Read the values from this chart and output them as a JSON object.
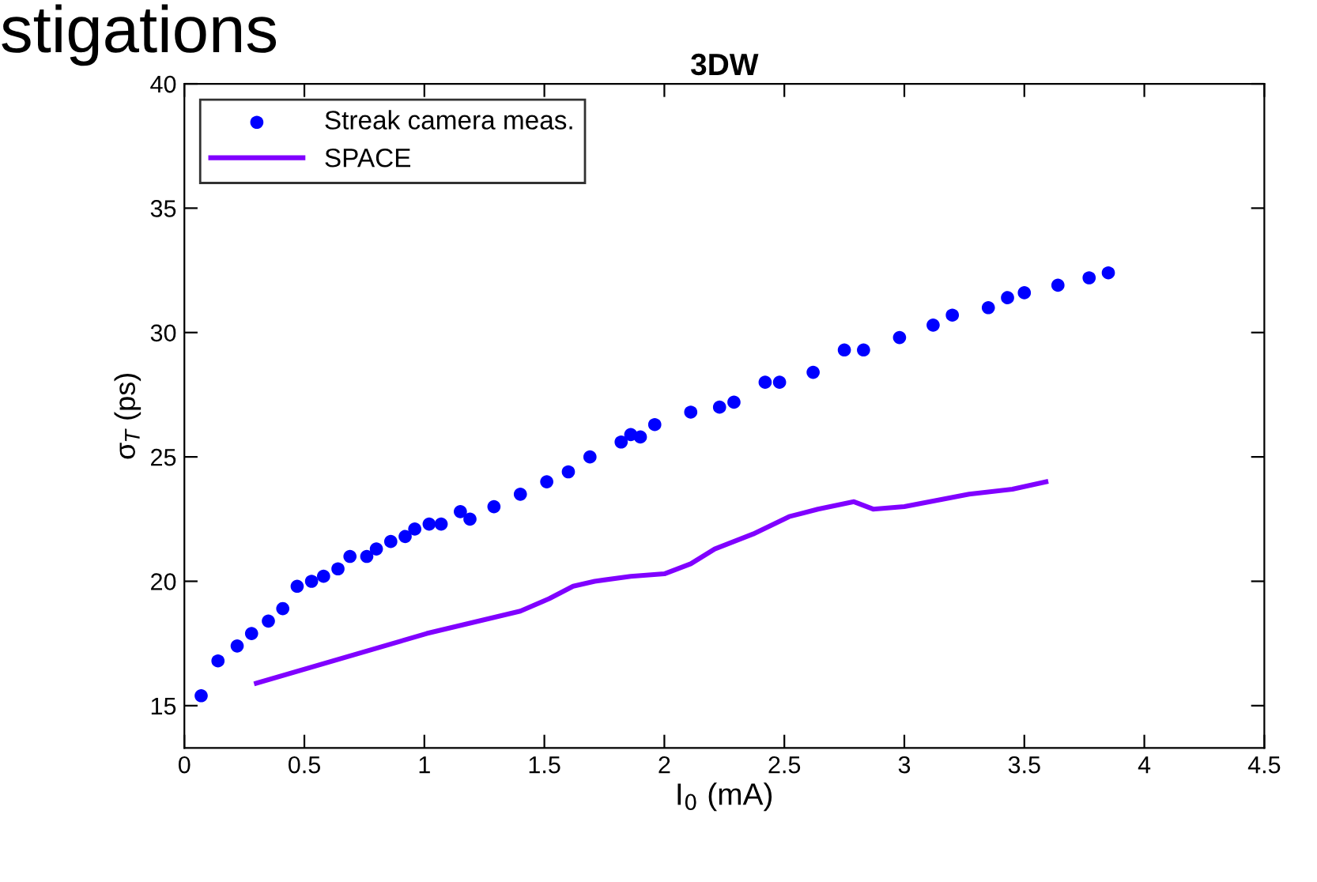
{
  "chart_data": {
    "type": "scatter",
    "title": "3DW",
    "xlabel": "I$_{0}$ (mA)",
    "ylabel": "σ$_{T}$ (ps)",
    "annotations": [
      "stigations"
    ],
    "xlim": [
      0,
      4.5
    ],
    "xticks": [
      0,
      0.5,
      1,
      1.5,
      2,
      2.5,
      3,
      3.5,
      4,
      4.5
    ],
    "ylim": [
      13.3,
      40
    ],
    "yticks": [
      15,
      20,
      25,
      30,
      35,
      40
    ],
    "grid": false,
    "legend": "top left",
    "series": [
      {
        "name": "Streak camera meas.",
        "color": "#0000ff",
        "marker": "circle",
        "x": [
          0.07,
          0.14,
          0.22,
          0.28,
          0.35,
          0.41,
          0.47,
          0.53,
          0.58,
          0.64,
          0.69,
          0.76,
          0.8,
          0.86,
          0.92,
          0.96,
          1.02,
          1.07,
          1.15,
          1.19,
          1.29,
          1.4,
          1.51,
          1.6,
          1.69,
          1.82,
          1.86,
          1.9,
          1.96,
          2.11,
          2.23,
          2.29,
          2.42,
          2.48,
          2.62,
          2.75,
          2.83,
          2.98,
          3.12,
          3.2,
          3.35,
          3.43,
          3.5,
          3.64,
          3.77,
          3.85
        ],
        "values": [
          15.4,
          16.8,
          17.4,
          17.9,
          18.4,
          18.9,
          19.8,
          20.0,
          20.2,
          20.5,
          21.0,
          21.0,
          21.3,
          21.6,
          21.8,
          22.1,
          22.3,
          22.3,
          22.8,
          22.5,
          23.0,
          23.5,
          24.0,
          24.4,
          25.0,
          25.6,
          25.9,
          25.8,
          26.3,
          26.8,
          27.0,
          27.2,
          28.0,
          28.0,
          28.4,
          29.3,
          29.3,
          29.8,
          30.3,
          30.7,
          31.0,
          31.4,
          31.6,
          31.9,
          32.2,
          32.4
        ]
      },
      {
        "name": "SPACE",
        "type": "line",
        "color": "#8000ff",
        "line_style": "solid",
        "x": [
          0.3,
          1.01,
          1.4,
          1.52,
          1.62,
          1.71,
          1.86,
          2.0,
          2.11,
          2.21,
          2.37,
          2.52,
          2.64,
          2.79,
          2.87,
          3.0,
          3.27,
          3.45,
          3.59
        ],
        "values": [
          15.9,
          17.9,
          18.8,
          19.3,
          19.8,
          20.0,
          20.2,
          20.3,
          20.7,
          21.3,
          21.9,
          22.6,
          22.9,
          23.2,
          22.9,
          23.0,
          23.5,
          23.7,
          24.0
        ]
      }
    ]
  }
}
